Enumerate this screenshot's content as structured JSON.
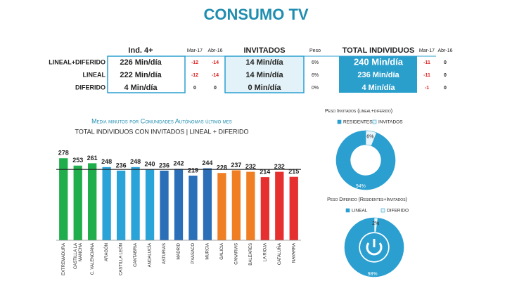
{
  "title": "CONSUMO TV",
  "table": {
    "columns": [
      "Ind. 4+",
      "Mar-17",
      "Abr-16",
      "INVITADOS",
      "Peso",
      "TOTAL INDIVIDUOS",
      "Mar-17",
      "Abr-16"
    ],
    "rows": [
      [
        "LINEAL+DIFERIDO",
        "226 Min/día",
        -12,
        -14,
        "14 Min/día",
        "6%",
        "240 Min/día",
        -11,
        0
      ],
      [
        "LINEAL",
        "222 Min/día",
        -12,
        -14,
        "14 Min/día",
        "6%",
        "236 Min/día",
        -11,
        0
      ],
      [
        "DIFERIDO",
        "4 Min/día",
        0,
        0,
        "0 Min/día",
        "0%",
        "4 Min/día",
        -1,
        0
      ]
    ]
  },
  "chart_data": [
    {
      "type": "bar",
      "title": "Media minutos por Comunidades Autónomas último mes",
      "subtitle": "TOTAL INDIVIDUOS CON INVITADOS | LINEAL + DIFERIDO",
      "categories": [
        "EXTREMADURA",
        "CASTILLA LA MANCHA",
        "C. VALENCIANA",
        "ARAGÓN",
        "CASTILLA LEÓN",
        "CANTABRIA",
        "ANDALUCÍA",
        "ASTURIAS",
        "MADRID",
        "P.VASACO",
        "MURCIA",
        "GALICIA",
        "CANARIAS",
        "BALEARES",
        "LA RIOJA",
        "CATALUÑA",
        "NAVARRA"
      ],
      "values": [
        278,
        253,
        261,
        248,
        236,
        248,
        240,
        236,
        242,
        219,
        244,
        228,
        237,
        232,
        214,
        232,
        215
      ],
      "colors": [
        "#1fae4b",
        "#1fae4b",
        "#1fae4b",
        "#2aa3d8",
        "#2aa3d8",
        "#2aa3d8",
        "#2aa3d8",
        "#2a6fb8",
        "#2a6fb8",
        "#2a6fb8",
        "#2a6fb8",
        "#f07e22",
        "#f07e22",
        "#f07e22",
        "#e63030",
        "#e63030",
        "#e63030"
      ],
      "average_line": 240,
      "ylim": [
        0,
        300
      ]
    },
    {
      "type": "pie",
      "title": "Peso Invitados (lineal+diferido)",
      "categories": [
        "RESIDENTES",
        "INVITADOS"
      ],
      "values": [
        94,
        6
      ],
      "value_labels": [
        "94%",
        "6%"
      ],
      "colors": [
        "#2a9fd0",
        "#e8f5fb"
      ]
    },
    {
      "type": "pie",
      "title": "Peso Diferido (Residentes+Invitados)",
      "categories": [
        "LINEAL",
        "DIFERIDO"
      ],
      "values": [
        98,
        2
      ],
      "value_labels": [
        "98%",
        "2%"
      ],
      "colors": [
        "#2a9fd0",
        "#e8f5fb"
      ]
    }
  ]
}
